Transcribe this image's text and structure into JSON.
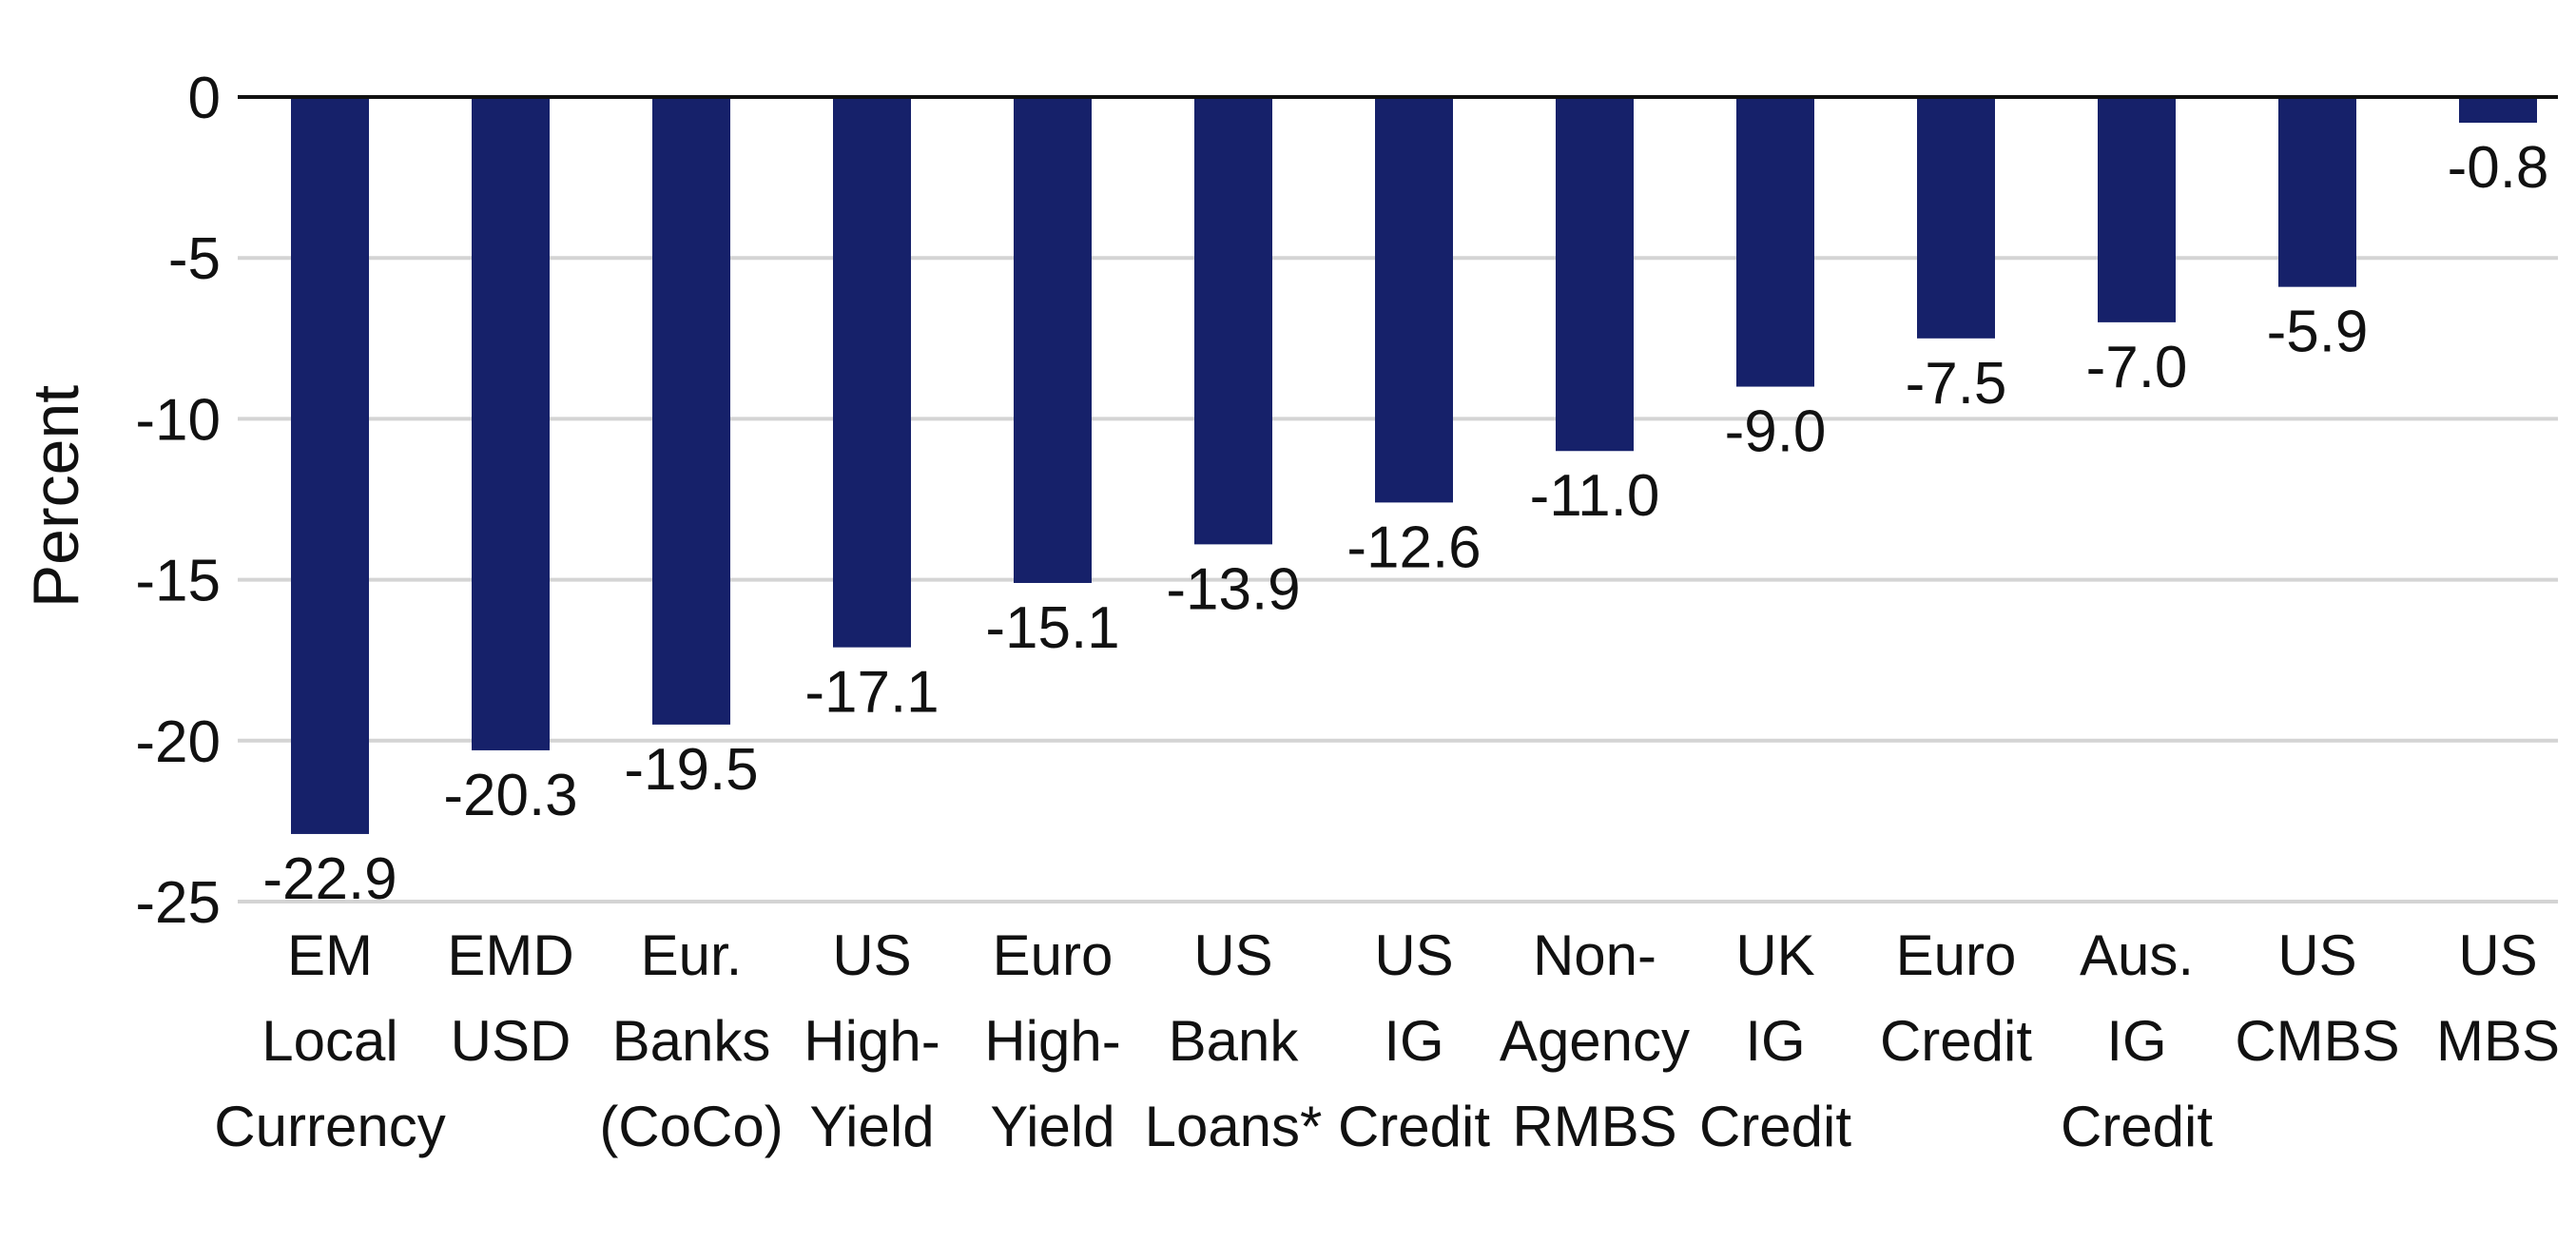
{
  "chart_data": {
    "type": "bar",
    "title": "",
    "xlabel": "",
    "ylabel": "Percent",
    "ylim": [
      -25,
      0
    ],
    "yticks": [
      0,
      -5,
      -10,
      -15,
      -20,
      -25
    ],
    "ytick_labels": [
      "0",
      "-5",
      "-10",
      "-15",
      "-20",
      "-25"
    ],
    "grid": true,
    "bar_color": "#16216A",
    "categories": [
      [
        "EM",
        "Local",
        "Currency"
      ],
      [
        "EMD",
        "USD"
      ],
      [
        "Eur.",
        "Banks",
        "(CoCo)"
      ],
      [
        "US",
        "High-",
        "Yield"
      ],
      [
        "Euro",
        "High-",
        "Yield"
      ],
      [
        "US",
        "Bank",
        "Loans*"
      ],
      [
        "US",
        "IG",
        "Credit"
      ],
      [
        "Non-",
        "Agency",
        "RMBS"
      ],
      [
        "UK",
        "IG",
        "Credit"
      ],
      [
        "Euro",
        "Credit"
      ],
      [
        "Aus.",
        "IG",
        "Credit"
      ],
      [
        "US",
        "CMBS"
      ],
      [
        "US",
        "MBS"
      ]
    ],
    "values": [
      -22.9,
      -20.3,
      -19.5,
      -17.1,
      -15.1,
      -13.9,
      -12.6,
      -11.0,
      -9.0,
      -7.5,
      -7.0,
      -5.9,
      -0.8
    ],
    "value_labels": [
      "-22.9",
      "-20.3",
      "-19.5",
      "-17.1",
      "-15.1",
      "-13.9",
      "-12.6",
      "-11.0",
      "-9.0",
      "-7.5",
      "-7.0",
      "-5.9",
      "-0.8"
    ]
  }
}
